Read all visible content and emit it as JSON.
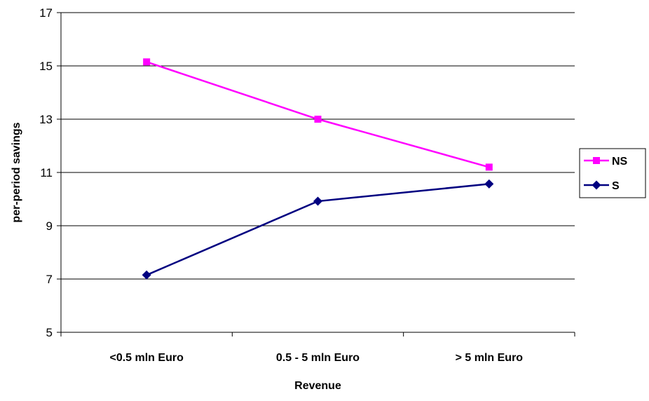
{
  "chart_data": {
    "type": "line",
    "title": "",
    "xlabel": "Revenue",
    "ylabel": "per-period savings",
    "categories": [
      "<0.5 mln Euro",
      "0.5 - 5 mln Euro",
      "> 5 mln Euro"
    ],
    "ylim": [
      5,
      17
    ],
    "yticks": [
      5,
      7,
      9,
      11,
      13,
      15,
      17
    ],
    "grid": true,
    "legend_position": "right",
    "series": [
      {
        "name": "NS",
        "values": [
          15.15,
          13.0,
          11.2
        ],
        "color": "#ff00ff",
        "marker": "square"
      },
      {
        "name": "S",
        "values": [
          7.15,
          9.92,
          10.57
        ],
        "color": "#000080",
        "marker": "diamond"
      }
    ]
  }
}
